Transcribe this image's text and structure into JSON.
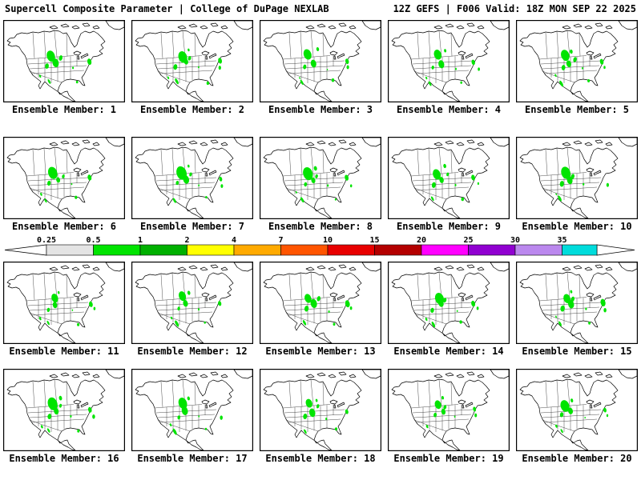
{
  "header": {
    "left": "Supercell Composite Parameter | College of DuPage NEXLAB",
    "right": "12Z GEFS | F006 Valid: 18Z MON SEP 22 2025"
  },
  "colorbar": {
    "tick_labels": [
      "0.25",
      "0.5",
      "1",
      "2",
      "4",
      "7",
      "10",
      "15",
      "20",
      "25",
      "30",
      "35"
    ],
    "segment_colors": [
      "#e4e4e4",
      "#00e400",
      "#00b000",
      "#ffff00",
      "#ffaa00",
      "#ff5500",
      "#e80000",
      "#b40000",
      "#ff00ff",
      "#9000d0",
      "#bb88ee",
      "#00dcdc"
    ],
    "under_arrow_color": "#ffffff",
    "over_arrow_color": "#ffffff"
  },
  "map": {
    "background": "#ffffff",
    "outline_color": "#000000",
    "scp_low_color": "#00e400"
  },
  "panels": [
    {
      "label": "Ensemble Member: 1"
    },
    {
      "label": "Ensemble Member: 2"
    },
    {
      "label": "Ensemble Member: 3"
    },
    {
      "label": "Ensemble Member: 4"
    },
    {
      "label": "Ensemble Member: 5"
    },
    {
      "label": "Ensemble Member: 6"
    },
    {
      "label": "Ensemble Member: 7"
    },
    {
      "label": "Ensemble Member: 8"
    },
    {
      "label": "Ensemble Member: 9"
    },
    {
      "label": "Ensemble Member: 10"
    },
    {
      "label": "Ensemble Member: 11"
    },
    {
      "label": "Ensemble Member: 12"
    },
    {
      "label": "Ensemble Member: 13"
    },
    {
      "label": "Ensemble Member: 14"
    },
    {
      "label": "Ensemble Member: 15"
    },
    {
      "label": "Ensemble Member: 16"
    },
    {
      "label": "Ensemble Member: 17"
    },
    {
      "label": "Ensemble Member: 18"
    },
    {
      "label": "Ensemble Member: 19"
    },
    {
      "label": "Ensemble Member: 20"
    }
  ]
}
